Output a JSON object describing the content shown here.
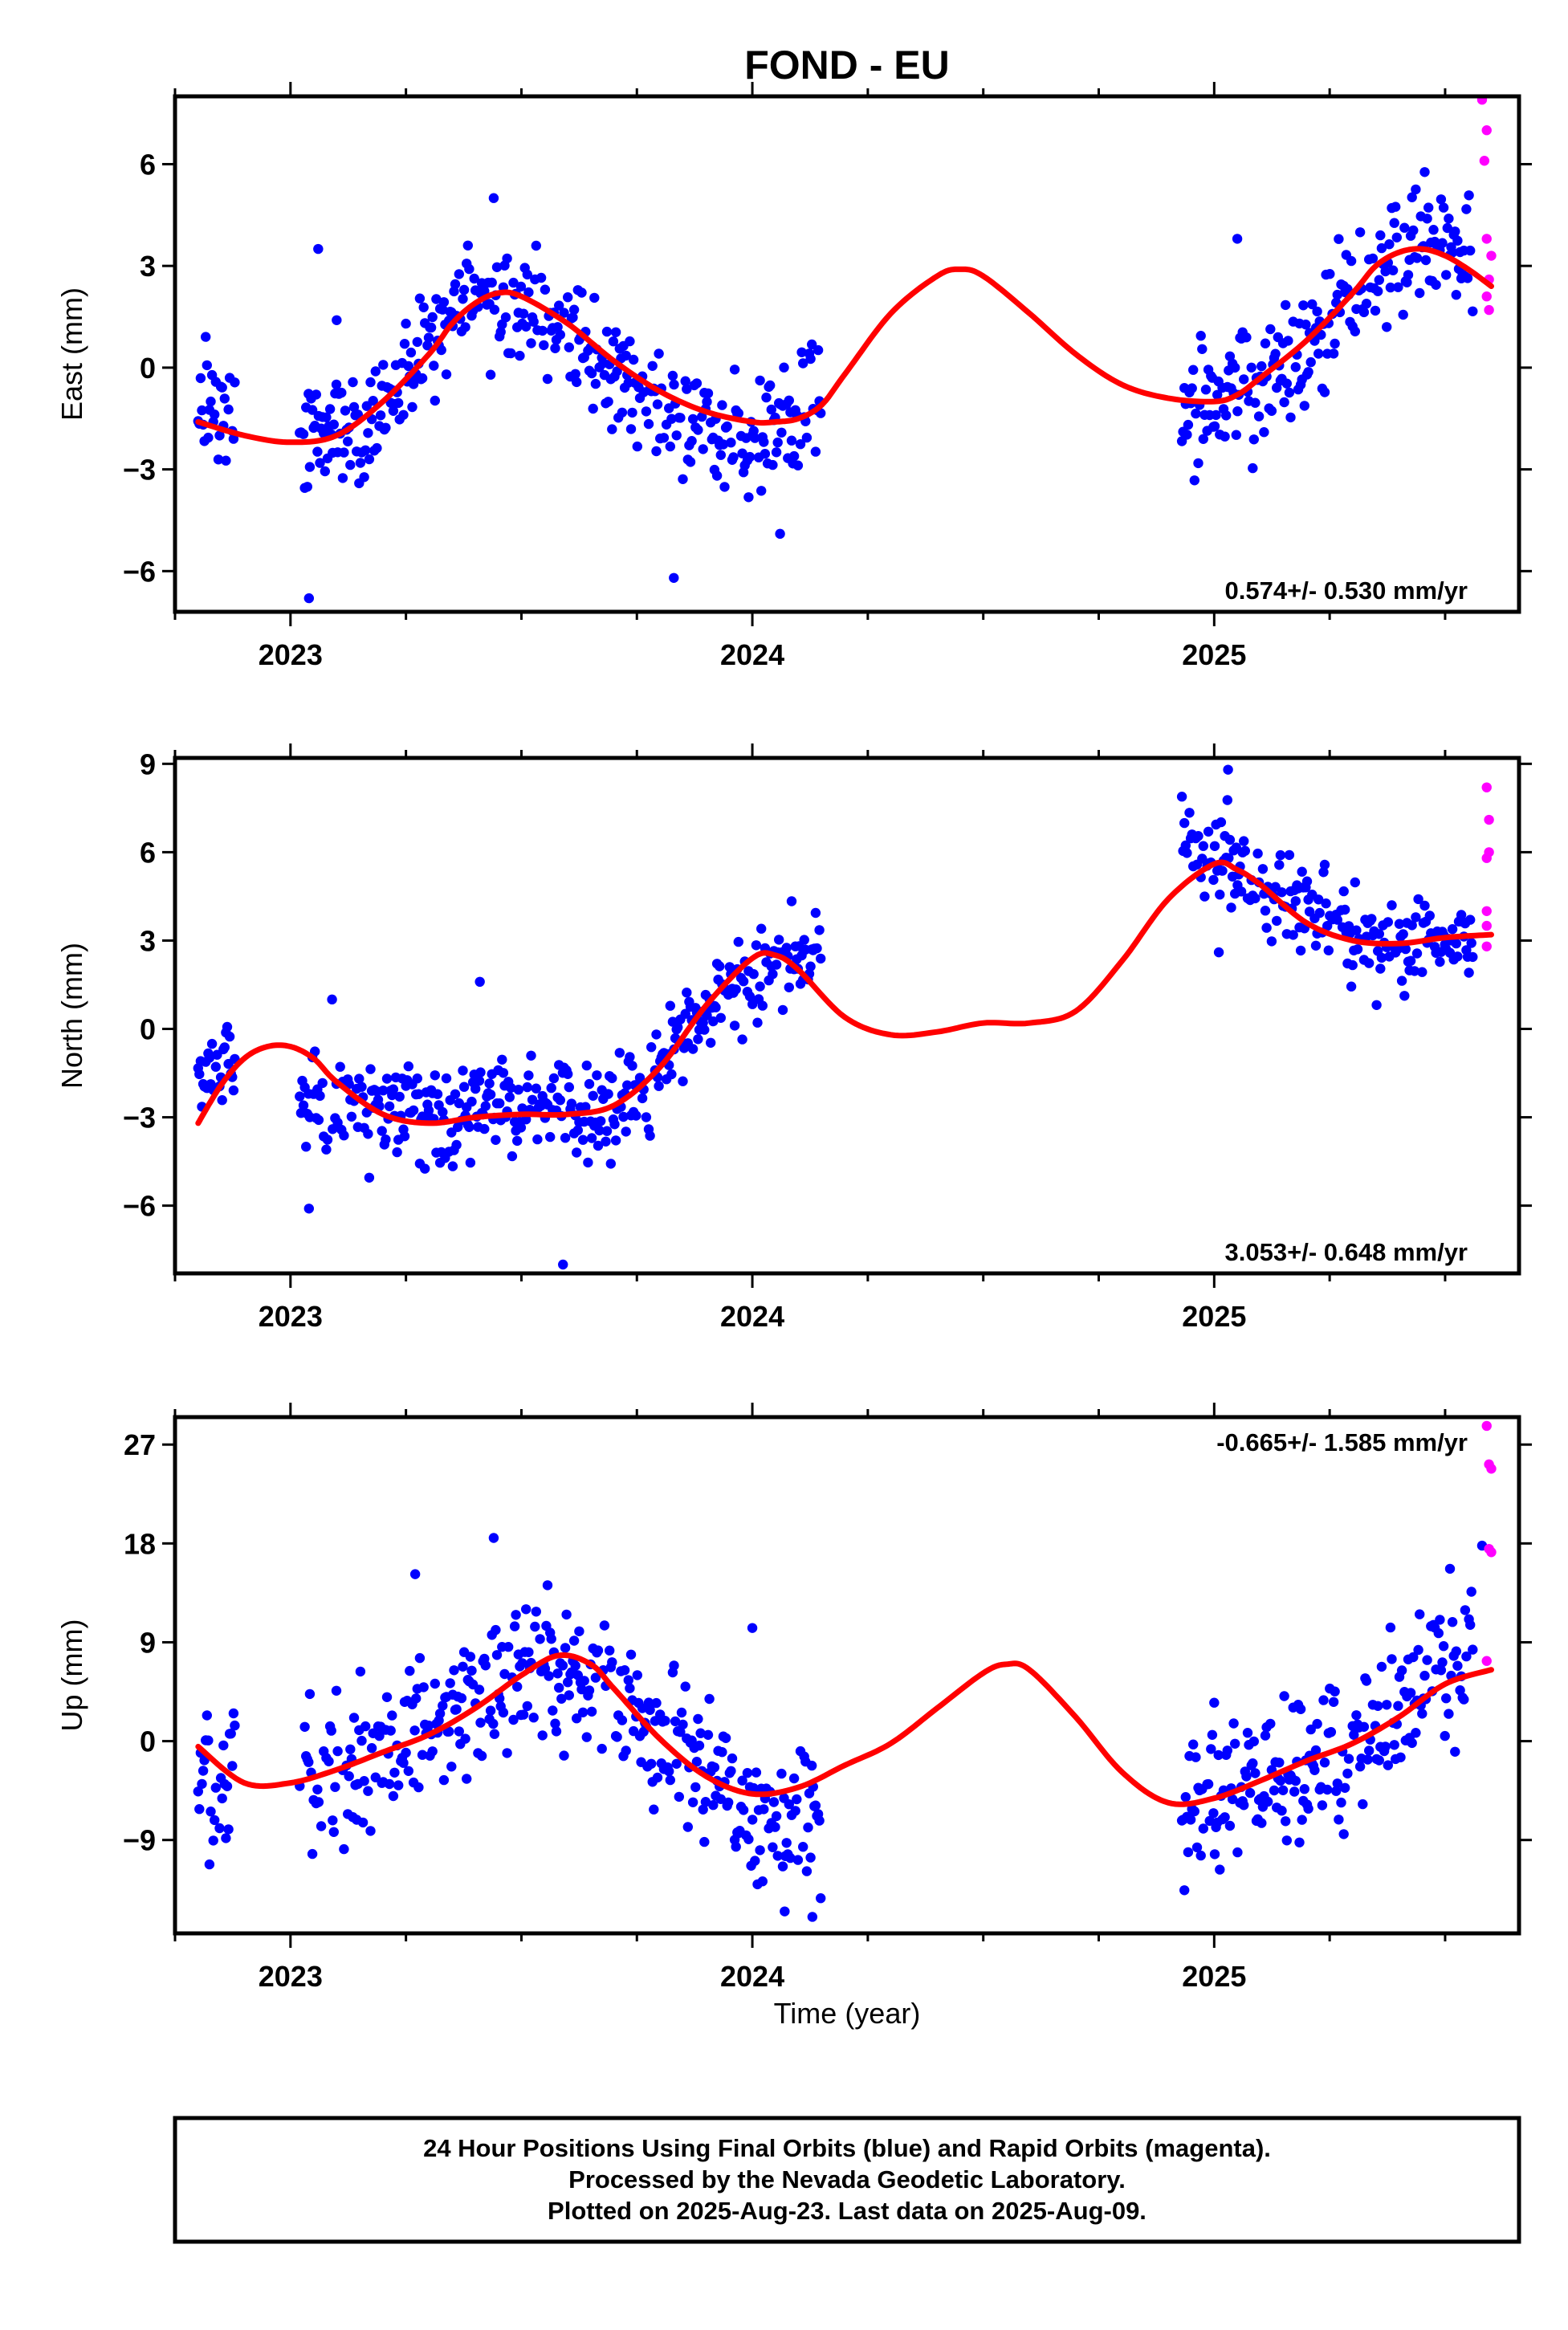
{
  "title": "FOND - EU",
  "xlabel": "Time (year)",
  "footer": {
    "lines": [
      "24 Hour Positions Using Final Orbits (blue) and Rapid Orbits (magenta).",
      "Processed by the Nevada Geodetic Laboratory.",
      "Plotted on 2025-Aug-23. Last data on 2025-Aug-09."
    ]
  },
  "colors": {
    "final": "#0000ff",
    "rapid": "#ff00ff",
    "fit": "#ff0000",
    "frame": "#000000"
  },
  "chart_data": [
    {
      "type": "scatter",
      "panel": "east",
      "ylabel": "East (mm)",
      "xlim": [
        2022.75,
        2025.66
      ],
      "ylim": [
        -7.2,
        8.0
      ],
      "x_ticks": [
        2023,
        2024,
        2025
      ],
      "x_ticklabels": [
        "2023",
        "2024",
        "2025"
      ],
      "y_ticks": [
        -6,
        -3,
        0,
        3,
        6
      ],
      "y_ticklabels": [
        "−6",
        "−3",
        "0",
        "3",
        "6"
      ],
      "rate": "0.574+/- 0.530 mm/yr",
      "rate_position": "bottom-right",
      "fit": {
        "x": [
          2022.8,
          2022.9,
          2023.0,
          2023.1,
          2023.2,
          2023.3,
          2023.35,
          2023.4,
          2023.45,
          2023.5,
          2023.6,
          2023.7,
          2023.8,
          2023.9,
          2024.0,
          2024.05,
          2024.1,
          2024.15,
          2024.2,
          2024.3,
          2024.4,
          2024.45,
          2024.5,
          2024.6,
          2024.7,
          2024.8,
          2024.9,
          2025.0,
          2025.05,
          2025.1,
          2025.2,
          2025.3,
          2025.35,
          2025.4,
          2025.45,
          2025.5,
          2025.55,
          2025.6
        ],
        "y": [
          -1.6,
          -2.0,
          -2.2,
          -2.0,
          -1.0,
          0.4,
          1.3,
          1.9,
          2.2,
          2.1,
          1.3,
          0.2,
          -0.7,
          -1.3,
          -1.6,
          -1.6,
          -1.5,
          -1.1,
          -0.2,
          1.6,
          2.7,
          2.9,
          2.7,
          1.6,
          0.4,
          -0.5,
          -0.9,
          -1.0,
          -0.8,
          -0.3,
          0.8,
          2.2,
          3.0,
          3.4,
          3.5,
          3.3,
          2.9,
          2.4
        ]
      },
      "final_trend": [
        [
          2022.8,
          -1.0
        ],
        [
          2022.9,
          -1.2
        ],
        [
          2023.0,
          -1.8
        ],
        [
          2023.1,
          -2.0
        ],
        [
          2023.2,
          -1.2
        ],
        [
          2023.3,
          0.6
        ],
        [
          2023.4,
          2.0
        ],
        [
          2023.5,
          1.9
        ],
        [
          2023.6,
          1.0
        ],
        [
          2023.7,
          -0.2
        ],
        [
          2023.8,
          -1.2
        ],
        [
          2023.9,
          -1.8
        ],
        [
          2024.0,
          -2.1
        ],
        [
          2024.1,
          -1.6
        ],
        [
          2024.15,
          -0.5
        ],
        [
          2024.93,
          -1.4
        ],
        [
          2025.0,
          -0.9
        ],
        [
          2025.1,
          -0.5
        ],
        [
          2025.2,
          0.6
        ],
        [
          2025.3,
          2.1
        ],
        [
          2025.4,
          3.5
        ],
        [
          2025.5,
          3.9
        ],
        [
          2025.56,
          3.1
        ]
      ],
      "final_noise": 1.1,
      "final_outliers": [
        [
          2023.04,
          -6.8
        ],
        [
          2023.06,
          3.5
        ],
        [
          2023.83,
          -6.2
        ],
        [
          2023.1,
          1.4
        ],
        [
          2023.44,
          5.0
        ],
        [
          2024.06,
          -4.9
        ],
        [
          2025.05,
          3.8
        ]
      ],
      "rapid_points": [
        [
          2025.58,
          7.9
        ],
        [
          2025.59,
          7.0
        ],
        [
          2025.585,
          6.1
        ],
        [
          2025.59,
          3.8
        ],
        [
          2025.6,
          3.3
        ],
        [
          2025.595,
          2.6
        ],
        [
          2025.59,
          2.1
        ],
        [
          2025.595,
          1.7
        ]
      ]
    },
    {
      "type": "scatter",
      "panel": "north",
      "ylabel": "North (mm)",
      "xlim": [
        2022.75,
        2025.66
      ],
      "ylim": [
        -8.3,
        9.2
      ],
      "x_ticks": [
        2023,
        2024,
        2025
      ],
      "x_ticklabels": [
        "2023",
        "2024",
        "2025"
      ],
      "y_ticks": [
        -6,
        -3,
        0,
        3,
        6,
        9
      ],
      "y_ticklabels": [
        "−6",
        "−3",
        "0",
        "3",
        "6",
        "9"
      ],
      "rate": "3.053+/- 0.648 mm/yr",
      "rate_position": "bottom-right",
      "fit": {
        "x": [
          2022.8,
          2022.85,
          2022.9,
          2022.95,
          2023.0,
          2023.05,
          2023.1,
          2023.2,
          2023.3,
          2023.4,
          2023.5,
          2023.6,
          2023.7,
          2023.8,
          2023.9,
          2024.0,
          2024.05,
          2024.1,
          2024.2,
          2024.3,
          2024.4,
          2024.5,
          2024.6,
          2024.7,
          2024.8,
          2024.9,
          2025.0,
          2025.05,
          2025.1,
          2025.2,
          2025.3,
          2025.4,
          2025.5,
          2025.6
        ],
        "y": [
          -3.2,
          -1.9,
          -1.0,
          -0.6,
          -0.6,
          -1.0,
          -1.8,
          -2.9,
          -3.2,
          -3.0,
          -2.9,
          -2.9,
          -2.6,
          -1.3,
          0.8,
          2.4,
          2.5,
          2.0,
          0.4,
          -0.2,
          -0.1,
          0.2,
          0.2,
          0.6,
          2.3,
          4.4,
          5.6,
          5.4,
          4.9,
          3.6,
          3.0,
          2.9,
          3.1,
          3.2
        ]
      },
      "final_trend": [
        [
          2022.8,
          -1.8
        ],
        [
          2022.9,
          -1.0
        ],
        [
          2023.0,
          -2.2
        ],
        [
          2023.1,
          -2.7
        ],
        [
          2023.3,
          -3.0
        ],
        [
          2023.5,
          -2.6
        ],
        [
          2023.7,
          -2.8
        ],
        [
          2023.8,
          -1.3
        ],
        [
          2023.9,
          0.6
        ],
        [
          2024.0,
          2.0
        ],
        [
          2024.15,
          2.6
        ],
        [
          2024.93,
          6.4
        ],
        [
          2025.05,
          5.6
        ],
        [
          2025.15,
          4.5
        ],
        [
          2025.25,
          3.4
        ],
        [
          2025.4,
          2.5
        ],
        [
          2025.56,
          2.8
        ]
      ],
      "final_noise": 1.0,
      "final_outliers": [
        [
          2023.04,
          -6.1
        ],
        [
          2023.41,
          1.6
        ],
        [
          2023.59,
          -8.0
        ],
        [
          2025.03,
          8.8
        ],
        [
          2025.01,
          2.6
        ],
        [
          2023.09,
          1.0
        ]
      ],
      "rapid_points": [
        [
          2025.59,
          8.2
        ],
        [
          2025.595,
          7.1
        ],
        [
          2025.59,
          5.8
        ],
        [
          2025.595,
          6.0
        ],
        [
          2025.59,
          4.0
        ],
        [
          2025.59,
          3.5
        ],
        [
          2025.59,
          2.8
        ]
      ]
    },
    {
      "type": "scatter",
      "panel": "up",
      "ylabel": "Up (mm)",
      "xlim": [
        2022.75,
        2025.66
      ],
      "ylim": [
        -17.5,
        29.5
      ],
      "x_ticks": [
        2023,
        2024,
        2025
      ],
      "x_ticklabels": [
        "2023",
        "2024",
        "2025"
      ],
      "y_ticks": [
        -9,
        0,
        9,
        18,
        27
      ],
      "y_ticklabels": [
        "−9",
        "0",
        "9",
        "18",
        "27"
      ],
      "rate": "-0.665+/- 1.585 mm/yr",
      "rate_position": "top-right",
      "fit": {
        "x": [
          2022.8,
          2022.9,
          2023.0,
          2023.1,
          2023.2,
          2023.3,
          2023.4,
          2023.5,
          2023.58,
          2023.65,
          2023.7,
          2023.8,
          2023.9,
          2024.0,
          2024.1,
          2024.2,
          2024.3,
          2024.4,
          2024.5,
          2024.55,
          2024.6,
          2024.7,
          2024.8,
          2024.9,
          2025.0,
          2025.1,
          2025.2,
          2025.3,
          2025.4,
          2025.5,
          2025.6
        ],
        "y": [
          -0.5,
          -3.8,
          -3.8,
          -2.6,
          -1.0,
          0.6,
          3.0,
          6.0,
          7.8,
          7.0,
          4.8,
          0.2,
          -3.2,
          -4.8,
          -4.2,
          -2.2,
          -0.2,
          3.0,
          6.2,
          7.0,
          6.5,
          2.2,
          -2.8,
          -5.6,
          -5.2,
          -3.6,
          -1.8,
          -0.2,
          2.2,
          5.2,
          6.5
        ]
      },
      "final_trend": [
        [
          2022.8,
          -4.0
        ],
        [
          2022.9,
          -3.0
        ],
        [
          2023.0,
          -3.2
        ],
        [
          2023.1,
          -2.8
        ],
        [
          2023.2,
          -1.2
        ],
        [
          2023.3,
          0.5
        ],
        [
          2023.4,
          2.8
        ],
        [
          2023.5,
          5.2
        ],
        [
          2023.6,
          6.8
        ],
        [
          2023.7,
          4.2
        ],
        [
          2023.8,
          0.5
        ],
        [
          2023.9,
          -3.2
        ],
        [
          2024.0,
          -6.2
        ],
        [
          2024.1,
          -7.0
        ],
        [
          2024.15,
          -8.0
        ],
        [
          2024.93,
          -7.2
        ],
        [
          2025.0,
          -5.2
        ],
        [
          2025.1,
          -3.8
        ],
        [
          2025.2,
          -2.2
        ],
        [
          2025.3,
          -0.6
        ],
        [
          2025.4,
          3.0
        ],
        [
          2025.5,
          6.2
        ],
        [
          2025.56,
          8.0
        ]
      ],
      "final_noise": 4.2,
      "final_outliers": [
        [
          2023.27,
          15.2
        ],
        [
          2023.44,
          18.5
        ],
        [
          2024.07,
          -15.5
        ],
        [
          2024.13,
          -16.0
        ],
        [
          2025.58,
          17.8
        ],
        [
          2025.0,
          3.5
        ],
        [
          2024.0,
          10.3
        ]
      ],
      "rapid_points": [
        [
          2025.59,
          28.7
        ],
        [
          2025.595,
          25.2
        ],
        [
          2025.6,
          24.8
        ],
        [
          2025.595,
          17.5
        ],
        [
          2025.6,
          17.2
        ],
        [
          2025.59,
          7.3
        ]
      ]
    }
  ]
}
